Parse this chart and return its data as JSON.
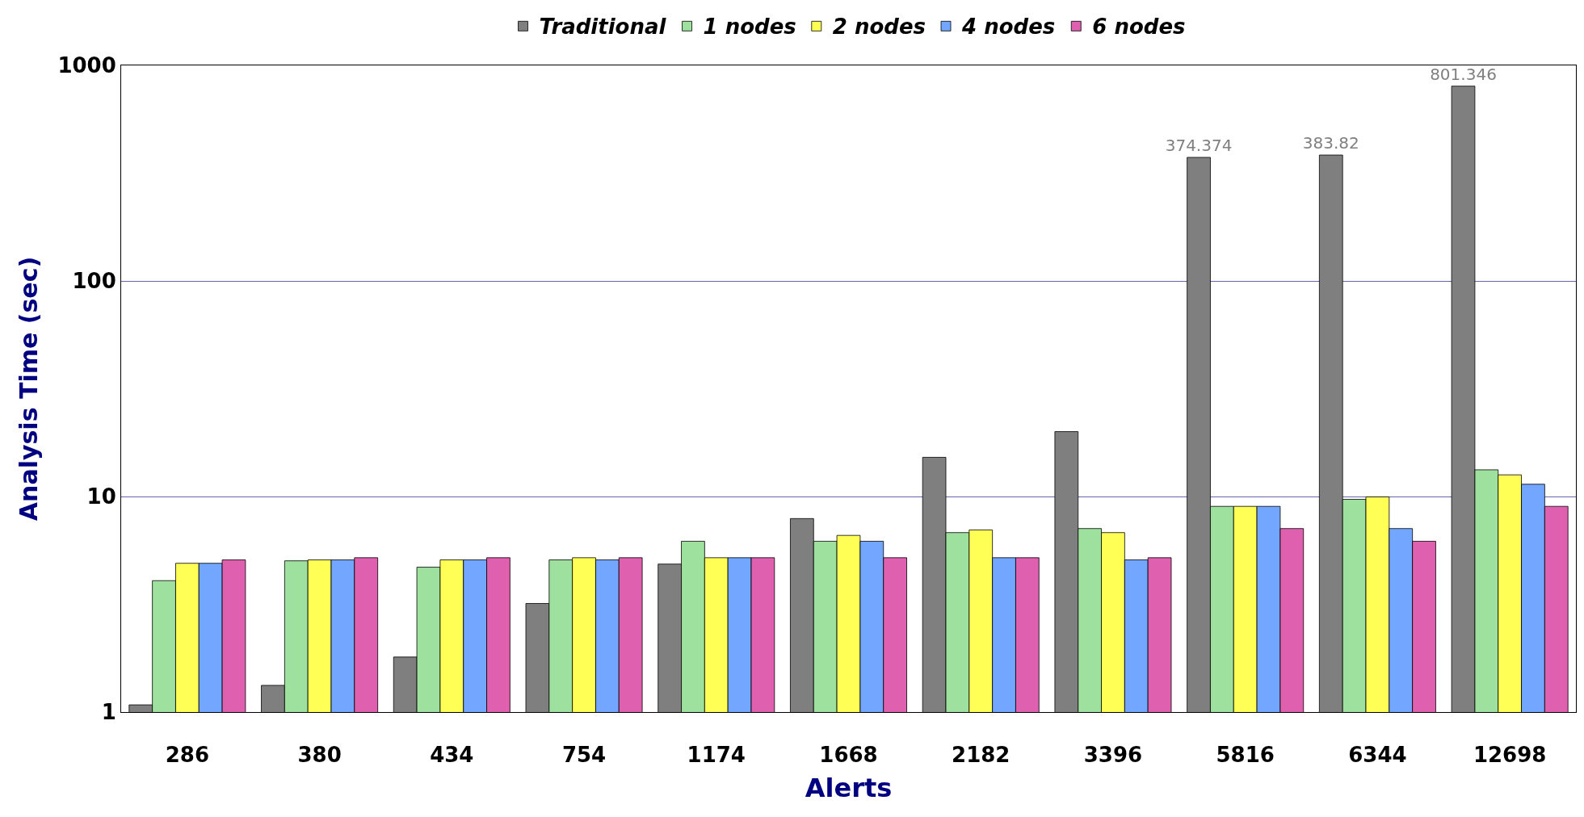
{
  "chart_data": {
    "type": "bar",
    "xlabel": "Alerts",
    "ylabel": "Analysis Time (sec)",
    "categories": [
      "286",
      "380",
      "434",
      "754",
      "1174",
      "1668",
      "2182",
      "3396",
      "5816",
      "6344",
      "12698"
    ],
    "series": [
      {
        "name": "Traditional",
        "color": "#7f7f7f",
        "values": [
          1.08,
          1.33,
          1.8,
          3.19,
          4.86,
          7.9,
          15.2,
          20,
          374.374,
          383.82,
          801.346
        ],
        "value_labels": [
          null,
          null,
          null,
          null,
          null,
          null,
          null,
          null,
          "374.374",
          "383.82",
          "801.346"
        ]
      },
      {
        "name": "1 nodes",
        "color": "#9ee09e",
        "values": [
          4.07,
          5.03,
          4.7,
          5.08,
          6.2,
          6.2,
          6.8,
          7.1,
          9.0,
          9.7,
          13.3
        ]
      },
      {
        "name": "2 nodes",
        "color": "#ffff55",
        "values": [
          4.9,
          5.08,
          5.08,
          5.2,
          5.2,
          6.6,
          7.0,
          6.8,
          9.0,
          9.96,
          12.6
        ]
      },
      {
        "name": "4 nodes",
        "color": "#73a6ff",
        "values": [
          4.9,
          5.08,
          5.08,
          5.08,
          5.2,
          6.2,
          5.2,
          5.08,
          9.0,
          7.1,
          11.4
        ]
      },
      {
        "name": "6 nodes",
        "color": "#e060b0",
        "values": [
          5.08,
          5.2,
          5.2,
          5.2,
          5.2,
          5.2,
          5.2,
          5.2,
          7.1,
          6.2,
          9.0
        ]
      }
    ],
    "log": "y",
    "ylim": [
      1,
      1000
    ],
    "yticks": [
      1,
      10,
      100,
      1000
    ],
    "grid": "y",
    "legend": "top"
  }
}
